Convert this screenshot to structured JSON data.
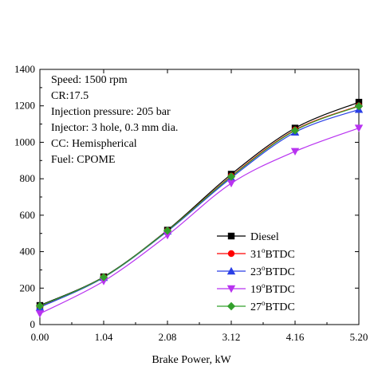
{
  "chart_data": {
    "type": "line",
    "title": "",
    "xlabel": "Brake Power, kW",
    "ylabel": "",
    "x": [
      0.0,
      1.04,
      2.08,
      3.12,
      4.16,
      5.2
    ],
    "x_tick_labels": [
      "0.00",
      "1.04",
      "2.08",
      "3.12",
      "4.16",
      "5.20"
    ],
    "y_ticks": [
      0,
      200,
      400,
      600,
      800,
      1000,
      1200,
      1400
    ],
    "xlim": [
      0,
      5.2
    ],
    "ylim": [
      0,
      1400
    ],
    "legend_position": "bottom-right",
    "grid": false,
    "annotations": [
      "Speed: 1500 rpm",
      "CR:17.5",
      "Injection pressure: 205 bar",
      "Injector: 3 hole, 0.3 mm dia.",
      "CC: Hemispherical",
      "Fuel: CPOME"
    ],
    "series": [
      {
        "name": "Diesel",
        "color": "#000000",
        "marker": "square",
        "values": [
          105,
          262,
          518,
          825,
          1078,
          1220
        ]
      },
      {
        "name": "31°BTDC",
        "color": "#ff0000",
        "marker": "circle",
        "values": [
          100,
          260,
          515,
          815,
          1068,
          1200
        ]
      },
      {
        "name": "23°BTDC",
        "color": "#2a3fe6",
        "marker": "triangle-up",
        "values": [
          95,
          258,
          512,
          805,
          1055,
          1180
        ]
      },
      {
        "name": "19°BTDC",
        "color": "#b833f0",
        "marker": "triangle-down",
        "values": [
          60,
          238,
          490,
          775,
          950,
          1078
        ]
      },
      {
        "name": "27°BTDC",
        "color": "#33a02c",
        "marker": "diamond",
        "values": [
          102,
          260,
          515,
          812,
          1065,
          1198
        ]
      }
    ],
    "legend_labels": [
      {
        "base": "Diesel",
        "sup": "",
        "rest": ""
      },
      {
        "base": "31",
        "sup": "o",
        "rest": "BTDC"
      },
      {
        "base": "23",
        "sup": "o",
        "rest": "BTDC"
      },
      {
        "base": "19",
        "sup": "o",
        "rest": "BTDC"
      },
      {
        "base": "27",
        "sup": "o",
        "rest": "BTDC"
      }
    ]
  }
}
